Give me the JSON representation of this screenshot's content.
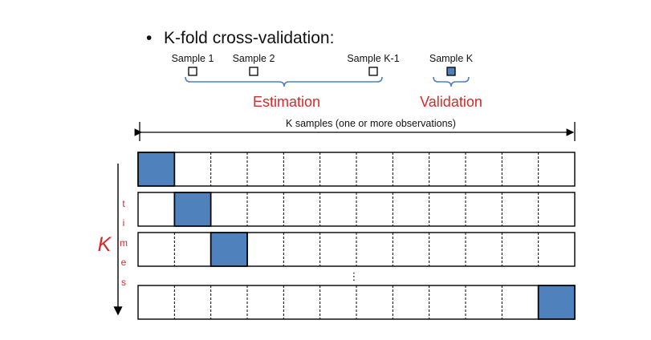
{
  "title": "K-fold cross-validation:",
  "bullet": "•",
  "samples": [
    {
      "label": "Sample 1",
      "filled": false
    },
    {
      "label": "Sample 2",
      "filled": false
    },
    {
      "label": "Sample K-1",
      "filled": false
    },
    {
      "label": "Sample K",
      "filled": true
    }
  ],
  "estimation_label": "Estimation",
  "validation_label": "Validation",
  "span_label": "K samples (one or more observations)",
  "k_label": "K",
  "times_letters": [
    "t",
    "i",
    "m",
    "e",
    "s"
  ],
  "ellipsis": "⋮",
  "fold_cells": 12,
  "folds_shown": [
    {
      "validation_index": 0
    },
    {
      "validation_index": 1
    },
    {
      "validation_index": 2
    },
    {
      "validation_index": 11
    }
  ],
  "colors": {
    "validation_fill": "#4f81bd",
    "accent_red": "#d42a2a",
    "bracket_blue": "#4f81bd",
    "line": "#000000"
  }
}
